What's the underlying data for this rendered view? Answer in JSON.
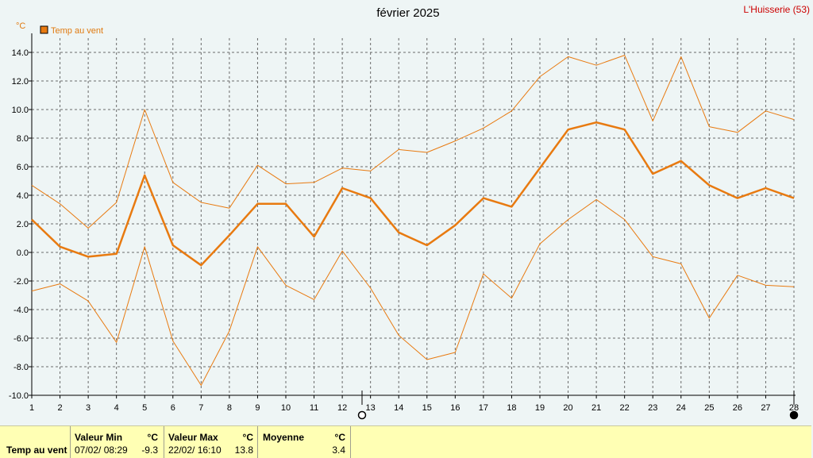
{
  "header": {
    "title": "février 2025",
    "station": "L'Huisserie (53)"
  },
  "chart_data": {
    "type": "line",
    "unit_label": "°C",
    "legend": "Temp au vent",
    "x": [
      1,
      2,
      3,
      4,
      5,
      6,
      7,
      8,
      9,
      10,
      11,
      12,
      13,
      14,
      15,
      16,
      17,
      18,
      19,
      20,
      21,
      22,
      23,
      24,
      25,
      26,
      27,
      28
    ],
    "xlim": [
      1,
      28
    ],
    "ylim": [
      -10,
      15
    ],
    "yticks": [
      -10,
      -8,
      -6,
      -4,
      -2,
      0,
      2,
      4,
      6,
      8,
      10,
      12,
      14
    ],
    "ytick_labels": [
      "-10.0",
      "-8.0",
      "-6.0",
      "-4.0",
      "-2.0",
      "0.0",
      "2.0",
      "4.0",
      "6.0",
      "8.0",
      "10.0",
      "12.0",
      "14.0"
    ],
    "grid": true,
    "color": "#e87a10",
    "series": [
      {
        "name": "Temp au vent",
        "role": "max",
        "values": [
          4.7,
          3.4,
          1.7,
          3.5,
          10.0,
          4.9,
          3.5,
          3.1,
          6.1,
          4.8,
          4.9,
          5.9,
          5.7,
          7.2,
          7.0,
          7.8,
          8.7,
          9.9,
          12.3,
          13.7,
          13.1,
          13.8,
          9.2,
          13.7,
          8.8,
          8.4,
          9.9,
          9.3
        ]
      },
      {
        "name": "Temp au vent",
        "role": "mean",
        "values": [
          2.3,
          0.4,
          -0.3,
          -0.1,
          5.4,
          0.5,
          -0.9,
          1.2,
          3.4,
          3.4,
          1.1,
          4.5,
          3.8,
          1.4,
          0.5,
          1.9,
          3.8,
          3.2,
          5.9,
          8.6,
          9.1,
          8.6,
          5.5,
          6.4,
          4.7,
          3.8,
          4.5,
          3.8
        ]
      },
      {
        "name": "Temp au vent",
        "role": "min",
        "values": [
          -2.7,
          -2.2,
          -3.4,
          -6.3,
          0.4,
          -6.2,
          -9.3,
          -5.5,
          0.4,
          -2.3,
          -3.3,
          0.1,
          -2.5,
          -5.8,
          -7.5,
          -7.0,
          -1.5,
          -3.2,
          0.6,
          2.3,
          3.7,
          2.3,
          -0.3,
          -0.8,
          -4.6,
          -1.6,
          -2.3,
          -2.4
        ]
      }
    ],
    "moon_markers": [
      {
        "day": 12.7,
        "phase": "full-moon"
      },
      {
        "day": 28,
        "phase": "new-moon"
      }
    ]
  },
  "stats": {
    "row_label": "Temp au vent",
    "min": {
      "header": "Valeur Min",
      "unit": "°C",
      "date": "07/02/  08:29",
      "value": "-9.3"
    },
    "max": {
      "header": "Valeur Max",
      "unit": "°C",
      "date": "22/02/  16:10",
      "value": "13.8"
    },
    "mean": {
      "header": "Moyenne",
      "unit": "°C",
      "value": "3.4"
    }
  }
}
